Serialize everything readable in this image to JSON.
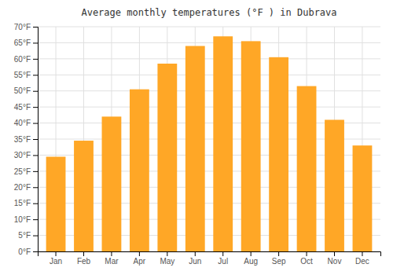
{
  "chart_data": {
    "type": "bar",
    "title": "Average monthly temperatures (°F ) in Dubrava",
    "categories": [
      "Jan",
      "Feb",
      "Mar",
      "Apr",
      "May",
      "Jun",
      "Jul",
      "Aug",
      "Sep",
      "Oct",
      "Nov",
      "Dec"
    ],
    "values": [
      29.5,
      34.5,
      42.0,
      50.5,
      58.5,
      64.0,
      67.0,
      65.5,
      60.5,
      51.5,
      41.0,
      33.0
    ],
    "color": "#FFA726",
    "ylim": [
      0,
      70
    ],
    "yticks": [
      {
        "value": 0,
        "label": "0°F"
      },
      {
        "value": 5,
        "label": "5°F"
      },
      {
        "value": 10,
        "label": "10°F"
      },
      {
        "value": 15,
        "label": "15°F"
      },
      {
        "value": 20,
        "label": "20°F"
      },
      {
        "value": 25,
        "label": "25°F"
      },
      {
        "value": 30,
        "label": "30°F"
      },
      {
        "value": 35,
        "label": "35°F"
      },
      {
        "value": 40,
        "label": "40°F"
      },
      {
        "value": 45,
        "label": "45°F"
      },
      {
        "value": 50,
        "label": "50°F"
      },
      {
        "value": 55,
        "label": "55°F"
      },
      {
        "value": 60,
        "label": "60°F"
      },
      {
        "value": 65,
        "label": "65°F"
      },
      {
        "value": 70,
        "label": "70°F"
      }
    ],
    "grid": true
  }
}
